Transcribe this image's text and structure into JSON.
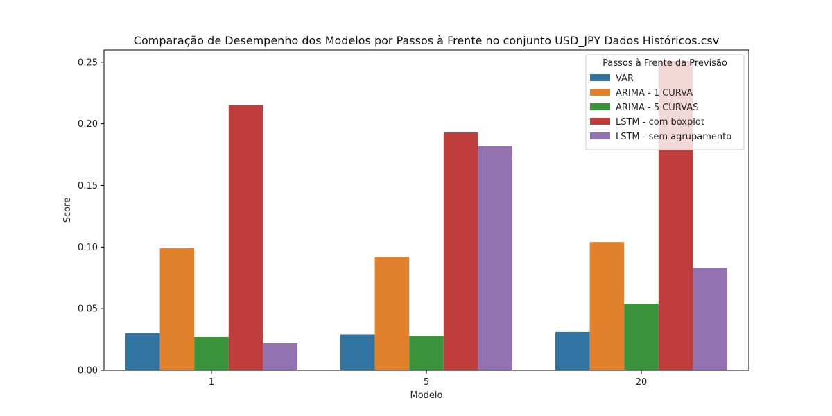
{
  "chart_data": {
    "type": "bar",
    "title": "Comparação de Desempenho dos Modelos por Passos à Frente no conjunto USD_JPY Dados Históricos.csv",
    "xlabel": "Modelo",
    "ylabel": "Score",
    "categories": [
      "1",
      "5",
      "20"
    ],
    "ylim": [
      0,
      0.26
    ],
    "yticks": [
      "0.00",
      "0.05",
      "0.10",
      "0.15",
      "0.20",
      "0.25"
    ],
    "grid": false,
    "legend": {
      "title": "Passos à Frente da Previsão",
      "position": "top-right"
    },
    "series": [
      {
        "name": "VAR",
        "color": "#3274a1",
        "values": [
          0.03,
          0.029,
          0.031
        ]
      },
      {
        "name": "ARIMA - 1 CURVA",
        "color": "#e1812c",
        "values": [
          0.099,
          0.092,
          0.104
        ]
      },
      {
        "name": "ARIMA - 5 CURVAS",
        "color": "#3a923a",
        "values": [
          0.027,
          0.028,
          0.054
        ]
      },
      {
        "name": "LSTM - com boxplot",
        "color": "#c03d3e",
        "values": [
          0.215,
          0.193,
          0.251
        ]
      },
      {
        "name": "LSTM - sem agrupamento",
        "color": "#9372b2",
        "values": [
          0.022,
          0.182,
          0.083
        ]
      }
    ]
  }
}
